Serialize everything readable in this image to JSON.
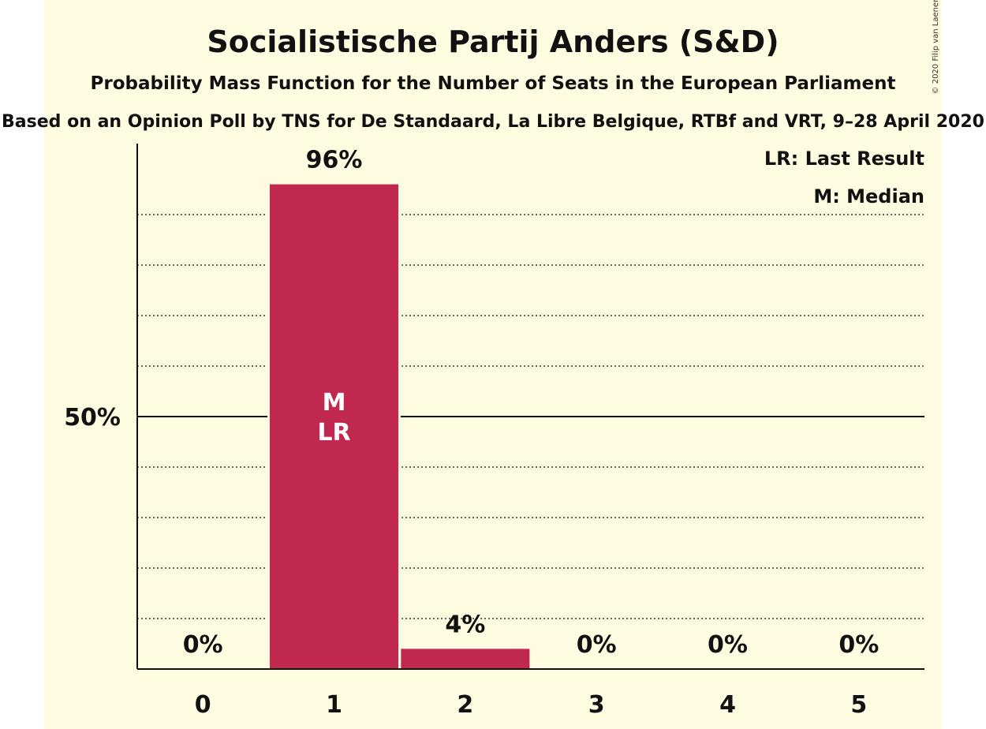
{
  "chart_data": {
    "type": "bar",
    "title": "Socialistische Partij Anders (S&D)",
    "subtitle": "Probability Mass Function for the Number of Seats in the European Parliament",
    "subtitle2": "Based on an Opinion Poll by TNS for De Standaard, La Libre Belgique, RTBf and VRT, 9–28 April 2020",
    "copyright": "© 2020 Filip van Laenen",
    "categories": [
      "0",
      "1",
      "2",
      "3",
      "4",
      "5"
    ],
    "values": [
      0,
      96,
      4,
      0,
      0,
      0
    ],
    "data_labels": [
      "0%",
      "96%",
      "4%",
      "0%",
      "0%",
      "0%"
    ],
    "ylim": [
      0,
      100
    ],
    "yticks": [
      {
        "value": 50,
        "label": "50%"
      }
    ],
    "grid": "dotted every 10%",
    "legend": [
      "LR: Last Result",
      "M: Median"
    ],
    "legend_position": "top-right",
    "bar_markers": {
      "category": "1",
      "lines": [
        "M",
        "LR"
      ]
    },
    "colors": {
      "background": "#fffce2",
      "bar": "#c0284f",
      "axis": "#111111",
      "marker_text": "#ffffff"
    }
  }
}
